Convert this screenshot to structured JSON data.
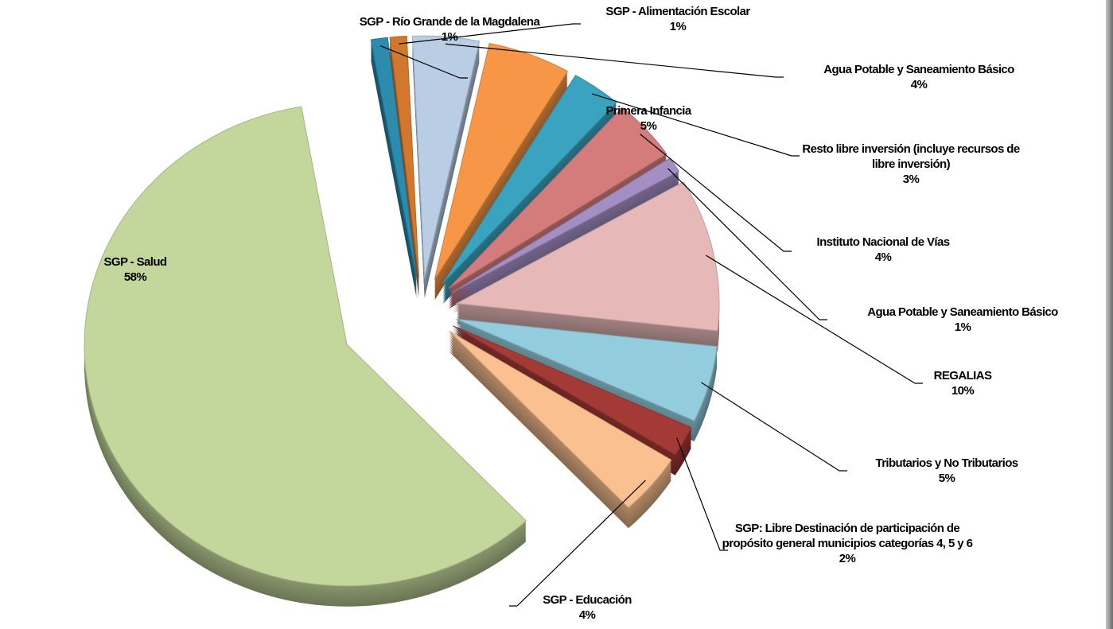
{
  "chart_data": {
    "type": "pie3d",
    "categories": [
      "SGP - Río Grande de la Magdalena",
      "SGP - Alimentación Escolar",
      "Agua Potable y Saneamiento Básico",
      "Primera Infancia",
      "Resto libre inversión (incluye recursos de libre inversión)",
      "Instituto Nacional de Vías",
      "Agua Potable y Saneamiento Básico",
      "REGALIAS",
      "Tributarios  y No Tributarios",
      "SGP: Libre Destinación de participación de propósito general municipios categorías 4, 5 y 6",
      "SGP - Educación",
      "SGP - Salud"
    ],
    "values": [
      1,
      1,
      4,
      5,
      3,
      4,
      1,
      10,
      5,
      2,
      4,
      58
    ],
    "value_labels": [
      "1%",
      "1%",
      "4%",
      "5%",
      "3%",
      "4%",
      "1%",
      "10%",
      "5%",
      "2%",
      "4%",
      "58%"
    ],
    "colors": [
      "#2b8cae",
      "#d2782e",
      "#b9cde5",
      "#f79646",
      "#3aa3bf",
      "#d47b7b",
      "#a38fc4",
      "#e6b9b8",
      "#93cddd",
      "#a33a36",
      "#fac090",
      "#c3d69b"
    ]
  }
}
